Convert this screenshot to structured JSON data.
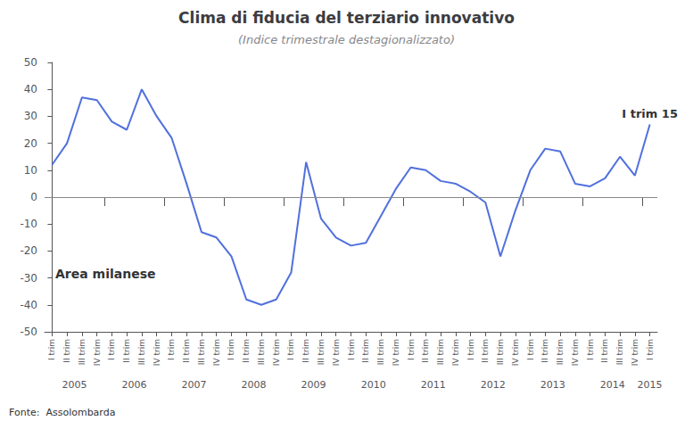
{
  "chart_data": {
    "type": "line",
    "title": "Clima di fiducia del terziario innovativo",
    "subtitle": "(Indice trimestrale destagionalizzato)",
    "source": "Fonte:  Assolombarda",
    "annotations": [
      "Area milanese",
      "I trim 15"
    ],
    "categories": [
      "I trim",
      "II trim",
      "III trim",
      "IV trim",
      "I trim",
      "II trim",
      "III trim",
      "IV trim",
      "I trim",
      "II trim",
      "III trim",
      "IV trim",
      "I trim",
      "II trim",
      "III trim",
      "IV trim",
      "I trim",
      "II trim",
      "III trim",
      "IV trim",
      "I trim",
      "II trim",
      "III trim",
      "IV trim",
      "I trim",
      "II trim",
      "III trim",
      "IV trim",
      "I trim",
      "II trim",
      "III trim",
      "IV trim",
      "I trim",
      "II trim",
      "III trim",
      "IV trim",
      "I trim",
      "II trim",
      "III trim",
      "IV trim",
      "I trim"
    ],
    "year_labels": [
      "2005",
      "2006",
      "2007",
      "2008",
      "2009",
      "2010",
      "2011",
      "2012",
      "2013",
      "2014",
      "2015"
    ],
    "values": [
      12,
      20,
      37,
      36,
      28,
      25,
      40,
      30,
      22,
      5,
      -13,
      -15,
      -22,
      -38,
      -40,
      -38,
      -28,
      13,
      -8,
      -15,
      -18,
      -17,
      -7,
      3,
      11,
      10,
      6,
      5,
      2,
      -2,
      -22,
      -5,
      10,
      18,
      17,
      5,
      4,
      7,
      15,
      8,
      27
    ],
    "ylim": [
      -50,
      50
    ],
    "yticks": [
      -50,
      -40,
      -30,
      -20,
      -10,
      0,
      10,
      20,
      30,
      40,
      50
    ],
    "grid": false
  }
}
